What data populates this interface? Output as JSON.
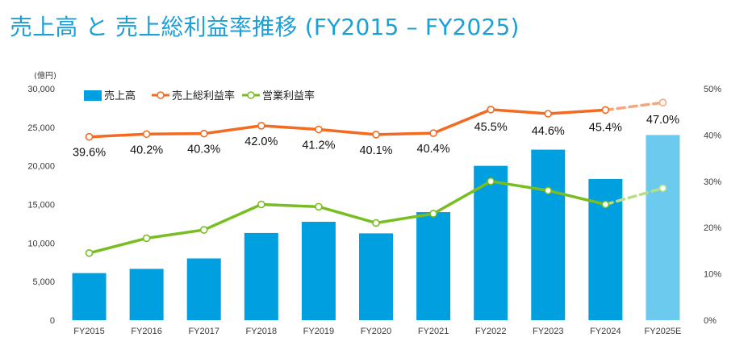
{
  "title": "売上高 と 売上総利益率推移 (FY2015 – FY2025)",
  "chart_data": {
    "type": "bar",
    "left_axis_unit": "(億円)",
    "categories": [
      "FY2015",
      "FY2016",
      "FY2017",
      "FY2018",
      "FY2019",
      "FY2020",
      "FY2021",
      "FY2022",
      "FY2023",
      "FY2024",
      "FY2025E"
    ],
    "ylim": [
      0,
      30000
    ],
    "yticks": [
      "0",
      "5,000",
      "10,000",
      "15,000",
      "20,000",
      "25,000",
      "30,000"
    ],
    "y2lim": [
      0,
      50
    ],
    "y2ticks": [
      "0%",
      "10%",
      "20%",
      "30%",
      "40%",
      "50%"
    ],
    "legend_position": "top-left",
    "grid": false,
    "series": [
      {
        "name": "売上高",
        "type": "bar",
        "axis": "left",
        "color": "#009fe0",
        "estimate_color": "#6ccaee",
        "values": [
          6100,
          6650,
          8000,
          11300,
          12750,
          11250,
          14000,
          20000,
          22100,
          18300,
          24000
        ]
      },
      {
        "name": "売上総利益率",
        "type": "line",
        "axis": "right",
        "color": "#f26b21",
        "estimate_color": "#f7a679",
        "values": [
          39.6,
          40.2,
          40.3,
          42.0,
          41.2,
          40.1,
          40.4,
          45.5,
          44.6,
          45.4,
          47.0
        ],
        "labels": [
          "39.6%",
          "40.2%",
          "40.3%",
          "42.0%",
          "41.2%",
          "40.1%",
          "40.4%",
          "45.5%",
          "44.6%",
          "45.4%",
          "47.0%"
        ]
      },
      {
        "name": "営業利益率",
        "type": "line",
        "axis": "right",
        "color": "#78be20",
        "estimate_color": "#b5df85",
        "values": [
          14.5,
          17.7,
          19.5,
          25.0,
          24.5,
          21.0,
          23.0,
          30.0,
          28.0,
          25.0,
          28.5
        ]
      }
    ]
  }
}
